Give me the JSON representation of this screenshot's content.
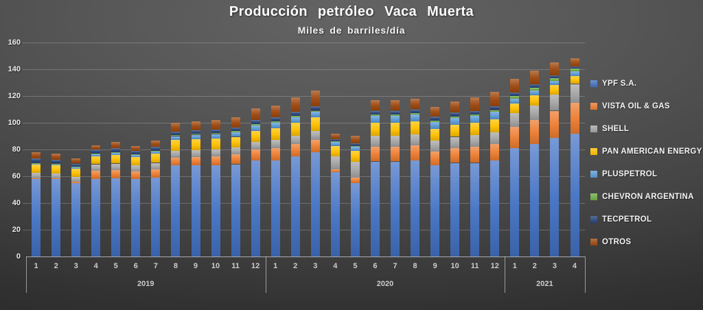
{
  "title": "Producción petróleo Vaca Muerta",
  "subtitle": "Miles de barriles/día",
  "chart_data": {
    "type": "bar",
    "stacked": true,
    "title": "Producción petróleo Vaca Muerta",
    "subtitle": "Miles de barriles/día",
    "ylabel": "Miles de barriles/día",
    "ylim": [
      0,
      160
    ],
    "yticks": [
      0,
      20,
      40,
      60,
      80,
      100,
      120,
      140,
      160
    ],
    "grid": true,
    "legend_position": "right",
    "categories": [
      "1",
      "2",
      "3",
      "4",
      "5",
      "6",
      "7",
      "8",
      "9",
      "10",
      "11",
      "12",
      "1",
      "2",
      "3",
      "4",
      "5",
      "6",
      "7",
      "8",
      "9",
      "10",
      "11",
      "12",
      "1",
      "2",
      "3",
      "4"
    ],
    "year_groups": [
      {
        "label": "2019",
        "months": 12
      },
      {
        "label": "2020",
        "months": 12
      },
      {
        "label": "2021",
        "months": 4
      }
    ],
    "series": [
      {
        "name": "YPF S.A.",
        "color": "#4472C4",
        "values": [
          58,
          58,
          55,
          58,
          58.5,
          58,
          59,
          68,
          68,
          68,
          69,
          72,
          72,
          75,
          78,
          63,
          55,
          71,
          71,
          72,
          68,
          70,
          70,
          72,
          81,
          84,
          89,
          92
        ]
      },
      {
        "name": "VISTA OIL & GAS",
        "color": "#ED7D31",
        "values": [
          0.5,
          0.5,
          1,
          6,
          6,
          5.5,
          6,
          6,
          6.5,
          7,
          7.5,
          8,
          9,
          9,
          9,
          2,
          4,
          11,
          11,
          11,
          10.5,
          11,
          12,
          12,
          16,
          18,
          20,
          23
        ]
      },
      {
        "name": "SHELL",
        "color": "#A5A5A5",
        "values": [
          4,
          3.5,
          3.5,
          5,
          5,
          4.5,
          5,
          5,
          5,
          5,
          5,
          5.5,
          6,
          6.5,
          7,
          10,
          12,
          8.5,
          8.5,
          8.5,
          8,
          8.5,
          9,
          9,
          10,
          11,
          12,
          14
        ]
      },
      {
        "name": "PAN AMERICAN ENERGY",
        "color": "#FFC000",
        "values": [
          6,
          6,
          6,
          6,
          6.5,
          6.5,
          7,
          8,
          8,
          8,
          8,
          8.5,
          9,
          9.5,
          10,
          7.5,
          8,
          9.5,
          9.5,
          9.5,
          9,
          9,
          9,
          9.5,
          7.5,
          7.5,
          7,
          6
        ]
      },
      {
        "name": "PLUSPETROL",
        "color": "#5B9BD5",
        "values": [
          1,
          1,
          1,
          1.5,
          1.5,
          1.5,
          1.5,
          3,
          3.5,
          3.5,
          3.5,
          4,
          4,
          4,
          4,
          3,
          3,
          5,
          5,
          5,
          5,
          5,
          5,
          5.5,
          3.5,
          3.5,
          3.5,
          3.5
        ]
      },
      {
        "name": "CHEVRON ARGENTINA",
        "color": "#70AD47",
        "values": [
          0.5,
          0.5,
          0.5,
          0.5,
          0.5,
          0.5,
          0.5,
          1,
          1,
          1,
          1,
          1,
          1,
          1,
          1,
          0.5,
          0.5,
          1,
          1,
          1,
          1,
          1,
          1,
          1.5,
          2,
          2,
          2,
          2
        ]
      },
      {
        "name": "TECPETROL",
        "color": "#264478",
        "values": [
          3.5,
          3,
          2.5,
          3,
          3,
          2.5,
          3,
          2.5,
          2.5,
          2.5,
          2.5,
          3,
          3,
          3,
          3.5,
          1.5,
          2,
          3,
          3,
          3,
          3,
          3,
          3,
          3,
          2.5,
          2.5,
          2,
          1.5
        ]
      },
      {
        "name": "OTROS",
        "color": "#9E480E",
        "values": [
          4.5,
          4.5,
          4,
          3,
          4.5,
          3.5,
          4.5,
          6.5,
          6.5,
          7,
          7.5,
          9,
          9,
          11,
          11.5,
          4.5,
          6,
          8,
          8,
          8,
          7.5,
          8.5,
          10,
          10.5,
          10.5,
          10.5,
          9.5,
          6
        ]
      }
    ]
  }
}
